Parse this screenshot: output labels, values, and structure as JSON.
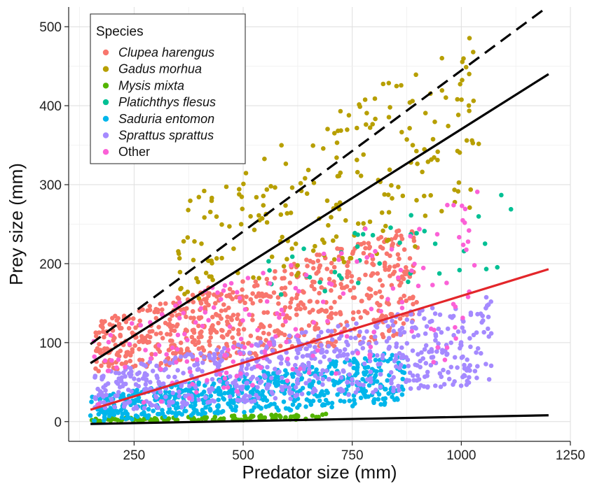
{
  "chart_data": {
    "type": "scatter",
    "title": "",
    "xlabel": "Predator size (mm)",
    "ylabel": "Prey size (mm)",
    "xlim": [
      100,
      1250
    ],
    "ylim": [
      -25,
      525
    ],
    "x_ticks": [
      250,
      500,
      750,
      1000,
      1250
    ],
    "y_ticks": [
      0,
      100,
      200,
      300,
      400,
      500
    ],
    "x_tick_labels": [
      "250",
      "500",
      "750",
      "1000",
      "1250"
    ],
    "y_tick_labels": [
      "0",
      "100",
      "200",
      "300",
      "400",
      "500"
    ],
    "grid": true,
    "legend": {
      "title": "Species",
      "position": "top-left",
      "entries": [
        {
          "label": "Clupea harengus",
          "color": "#F8766D",
          "italic": true
        },
        {
          "label": "Gadus morhua",
          "color": "#B79F00",
          "italic": true
        },
        {
          "label": "Mysis mixta",
          "color": "#53B400",
          "italic": true
        },
        {
          "label": "Platichthys flesus",
          "color": "#00C094",
          "italic": true
        },
        {
          "label": "Saduria entomon",
          "color": "#00B6EB",
          "italic": true
        },
        {
          "label": "Sprattus sprattus",
          "color": "#A58AFF",
          "italic": true
        },
        {
          "label": "Other",
          "color": "#FB61D7",
          "italic": false
        }
      ]
    },
    "series": [
      {
        "name": "Clupea harengus",
        "color": "#F8766D",
        "x_range": [
          160,
          900
        ],
        "y_range": [
          60,
          250
        ]
      },
      {
        "name": "Gadus morhua",
        "color": "#B79F00",
        "x_range": [
          350,
          1040
        ],
        "y_range": [
          150,
          500
        ]
      },
      {
        "name": "Mysis mixta",
        "color": "#53B400",
        "x_range": [
          150,
          700
        ],
        "y_range": [
          0,
          10
        ]
      },
      {
        "name": "Platichthys flesus",
        "color": "#00C094",
        "x_range": [
          550,
          1130
        ],
        "y_range": [
          150,
          310
        ]
      },
      {
        "name": "Saduria entomon",
        "color": "#00B6EB",
        "x_range": [
          150,
          870
        ],
        "y_range": [
          0,
          90
        ]
      },
      {
        "name": "Sprattus sprattus",
        "color": "#A58AFF",
        "x_range": [
          160,
          1070
        ],
        "y_range": [
          10,
          160
        ]
      },
      {
        "name": "Other",
        "color": "#FB61D7",
        "x_range": [
          150,
          1040
        ],
        "y_range": [
          10,
          300
        ]
      }
    ],
    "fit_lines": [
      {
        "style": "dashed",
        "color": "#000000",
        "x": [
          150,
          1197
        ],
        "y": [
          98,
          525
        ]
      },
      {
        "style": "solid",
        "color": "#000000",
        "x": [
          150,
          1200
        ],
        "y": [
          74,
          440
        ]
      },
      {
        "style": "solid",
        "color": "#E3262A",
        "x": [
          150,
          1200
        ],
        "y": [
          15,
          193
        ]
      },
      {
        "style": "solid",
        "color": "#000000",
        "x": [
          150,
          1200
        ],
        "y": [
          -3,
          8
        ]
      }
    ]
  }
}
